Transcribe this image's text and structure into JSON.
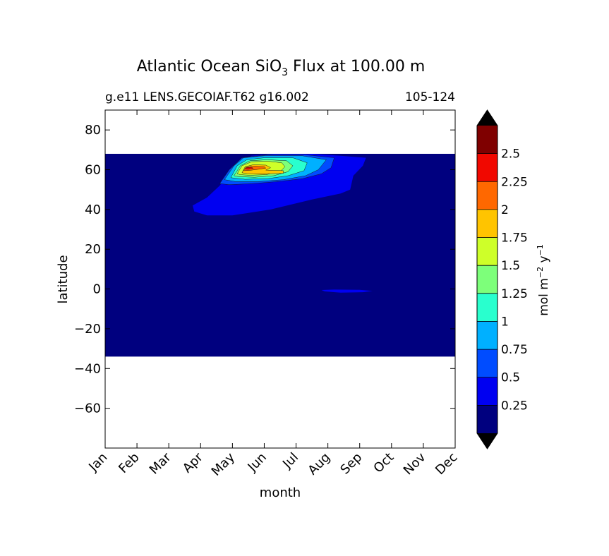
{
  "chart_data": {
    "type": "heatmap",
    "title_main": "Atlantic Ocean SiO",
    "title_sub": "3",
    "title_rest": " Flux at 100.00 m",
    "subtitle_left": "g.e11 LENS.GECOIAF.T62 g16.002",
    "subtitle_right": "105-124",
    "xlabel": "month",
    "ylabel": "latitude",
    "x_categories": [
      "Jan",
      "Feb",
      "Mar",
      "Apr",
      "May",
      "Jun",
      "Jul",
      "Aug",
      "Sep",
      "Oct",
      "Nov",
      "Dec"
    ],
    "xlim": [
      1,
      12
    ],
    "ylim": [
      -80,
      90
    ],
    "y_ticks": [
      80,
      60,
      40,
      20,
      0,
      -20,
      -40,
      -60
    ],
    "y_tick_labels": [
      "80",
      "60",
      "40",
      "20",
      "0",
      "−20",
      "−40",
      "−60"
    ],
    "data_extent": {
      "lat_min": -34,
      "lat_max": 68
    },
    "grid": false,
    "colorbar": {
      "label_main": "mol m",
      "label_exp1": "−2",
      "label_mid": " y",
      "label_exp2": "−1",
      "levels": [
        0,
        0.25,
        0.5,
        0.75,
        1,
        1.25,
        1.5,
        1.75,
        2,
        2.25,
        2.5,
        2.75
      ],
      "tick_values": [
        0.25,
        0.5,
        0.75,
        1,
        1.25,
        1.5,
        1.75,
        2,
        2.25,
        2.5
      ],
      "tick_labels": [
        "0.25",
        "0.5",
        "0.75",
        "1",
        "1.25",
        "1.5",
        "1.75",
        "2",
        "2.25",
        "2.5"
      ],
      "colors": [
        "#00007f",
        "#0000f1",
        "#004cff",
        "#00b0ff",
        "#29ffce",
        "#7dff7a",
        "#ceff29",
        "#ffc400",
        "#ff6800",
        "#f10800",
        "#7f0000"
      ],
      "extend_low_color": "#000000",
      "extend_high_color": "#000000"
    },
    "contour_regions": [
      {
        "level": 1,
        "points": [
          [
            3.75,
            42
          ],
          [
            4.2,
            46
          ],
          [
            4.6,
            52
          ],
          [
            4.9,
            58
          ],
          [
            5.2,
            64
          ],
          [
            5.6,
            67
          ],
          [
            6.3,
            68
          ],
          [
            7.5,
            68
          ],
          [
            8.4,
            67
          ],
          [
            9.2,
            66
          ],
          [
            9.1,
            62
          ],
          [
            8.8,
            57
          ],
          [
            8.7,
            50
          ],
          [
            8.4,
            48
          ],
          [
            7.5,
            45
          ],
          [
            6.2,
            40
          ],
          [
            5,
            37
          ],
          [
            4.2,
            37
          ],
          [
            3.8,
            39
          ]
        ]
      },
      {
        "level": 2,
        "points": [
          [
            4.6,
            53
          ],
          [
            4.9,
            60
          ],
          [
            5.3,
            66
          ],
          [
            6.1,
            67.5
          ],
          [
            7.3,
            67.5
          ],
          [
            8.2,
            66
          ],
          [
            8.1,
            61
          ],
          [
            7.8,
            58
          ],
          [
            7.2,
            55.5
          ],
          [
            6.4,
            54
          ],
          [
            5.6,
            53
          ],
          [
            4.9,
            52.5
          ]
        ]
      },
      {
        "level": 3,
        "points": [
          [
            4.75,
            55
          ],
          [
            5.05,
            62
          ],
          [
            5.35,
            66
          ],
          [
            6,
            67
          ],
          [
            7.2,
            67
          ],
          [
            7.95,
            65
          ],
          [
            7.7,
            60
          ],
          [
            7.3,
            57
          ],
          [
            6.6,
            55
          ],
          [
            5.8,
            54
          ],
          [
            5.1,
            54
          ]
        ]
      },
      {
        "level": 4,
        "points": [
          [
            4.95,
            56
          ],
          [
            5.15,
            62
          ],
          [
            5.45,
            65
          ],
          [
            6,
            66
          ],
          [
            6.9,
            66
          ],
          [
            7.35,
            63.5
          ],
          [
            7.25,
            59.5
          ],
          [
            6.75,
            57
          ],
          [
            6.1,
            55.5
          ],
          [
            5.4,
            55.2
          ]
        ]
      },
      {
        "level": 5,
        "points": [
          [
            5.05,
            57
          ],
          [
            5.25,
            62
          ],
          [
            5.55,
            64.5
          ],
          [
            6.1,
            65
          ],
          [
            6.7,
            64.5
          ],
          [
            6.9,
            62
          ],
          [
            6.75,
            59
          ],
          [
            6.3,
            57
          ],
          [
            5.7,
            56.2
          ],
          [
            5.2,
            56.5
          ]
        ]
      },
      {
        "level": 6,
        "points": [
          [
            5.15,
            58
          ],
          [
            5.3,
            62
          ],
          [
            5.6,
            64
          ],
          [
            6.1,
            64.3
          ],
          [
            6.55,
            63.5
          ],
          [
            6.65,
            61.5
          ],
          [
            6.5,
            59
          ],
          [
            6.05,
            57.5
          ],
          [
            5.55,
            57.2
          ],
          [
            5.25,
            57.5
          ]
        ]
      },
      {
        "level": 7,
        "points": [
          [
            5.3,
            58.5
          ],
          [
            5.4,
            61.5
          ],
          [
            5.65,
            62.5
          ],
          [
            6.05,
            62.3
          ],
          [
            6.2,
            61
          ],
          [
            6.05,
            59.8
          ],
          [
            6.6,
            59.5
          ],
          [
            6.6,
            58.2
          ],
          [
            5.95,
            57.8
          ],
          [
            5.5,
            57.9
          ]
        ]
      },
      {
        "level": 8,
        "points": [
          [
            5.35,
            59.5
          ],
          [
            5.42,
            61.2
          ],
          [
            5.7,
            61.8
          ],
          [
            6,
            61.5
          ],
          [
            6.05,
            60.8
          ],
          [
            5.8,
            60.2
          ],
          [
            5.5,
            59.6
          ]
        ]
      },
      {
        "level": 9,
        "points": [
          [
            5.4,
            60.3
          ],
          [
            5.45,
            61.1
          ],
          [
            5.6,
            61.3
          ],
          [
            5.65,
            60.7
          ],
          [
            5.5,
            60.2
          ]
        ]
      },
      {
        "level": 1,
        "points": [
          [
            7.8,
            -0.5
          ],
          [
            8.2,
            -0.3
          ],
          [
            9,
            -0.4
          ],
          [
            9.4,
            -1
          ],
          [
            9.1,
            -1.6
          ],
          [
            8.4,
            -1.8
          ],
          [
            7.9,
            -1.2
          ]
        ]
      }
    ]
  }
}
